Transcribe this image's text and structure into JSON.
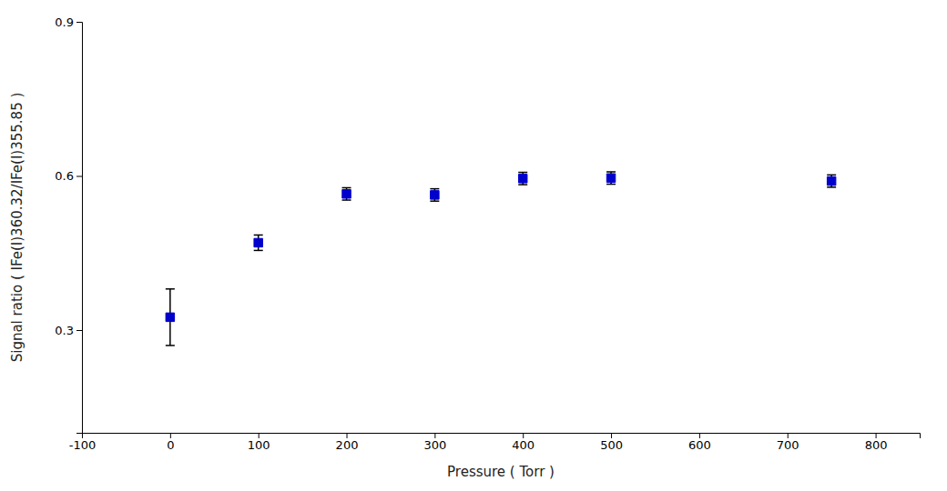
{
  "chart_data": {
    "type": "scatter",
    "x": [
      0,
      100,
      200,
      300,
      400,
      500,
      750
    ],
    "y": [
      0.325,
      0.47,
      0.565,
      0.563,
      0.595,
      0.596,
      0.59
    ],
    "yerr": [
      0.055,
      0.015,
      0.012,
      0.012,
      0.012,
      0.012,
      0.012
    ],
    "color": "#0000CC",
    "marker": "square",
    "xlabel": "Pressure ( Torr )",
    "ylabel": "Signal ratio ( IFe(I)360.32/IFe(I)355.85 )",
    "xlim": [
      -100,
      850
    ],
    "ylim": [
      0.1,
      0.9
    ],
    "xticks": [
      -100,
      0,
      100,
      200,
      300,
      400,
      500,
      600,
      700,
      800
    ],
    "yticks": [
      0.3,
      0.6,
      0.9
    ],
    "grid": false
  }
}
